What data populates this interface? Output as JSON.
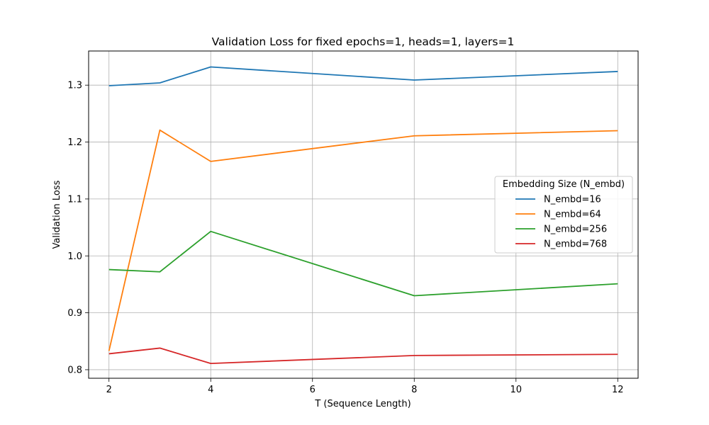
{
  "chart_data": {
    "type": "line",
    "title": "Validation Loss for fixed epochs=1, heads=1, layers=1",
    "xlabel": "T (Sequence Length)",
    "ylabel": "Validation Loss",
    "x": [
      2,
      3,
      4,
      8,
      12
    ],
    "xticks": [
      "2",
      "4",
      "6",
      "8",
      "10",
      "12"
    ],
    "yticks": [
      "0.8",
      "0.9",
      "1.0",
      "1.1",
      "1.2",
      "1.3"
    ],
    "xlim": [
      1.6,
      12.4
    ],
    "ylim": [
      0.785,
      1.36
    ],
    "grid": true,
    "legend": {
      "title": "Embedding Size (N_embd)",
      "placement": "center-right"
    },
    "series": [
      {
        "name": "N_embd=16",
        "color": "#1f77b4",
        "values": [
          1.299,
          1.304,
          1.332,
          1.309,
          1.324
        ]
      },
      {
        "name": "N_embd=64",
        "color": "#ff7f0e",
        "values": [
          0.833,
          1.221,
          1.166,
          1.211,
          1.22
        ]
      },
      {
        "name": "N_embd=256",
        "color": "#2ca02c",
        "values": [
          0.976,
          0.972,
          1.043,
          0.93,
          0.951
        ]
      },
      {
        "name": "N_embd=768",
        "color": "#d62728",
        "values": [
          0.828,
          0.838,
          0.811,
          0.825,
          0.827
        ]
      }
    ]
  }
}
